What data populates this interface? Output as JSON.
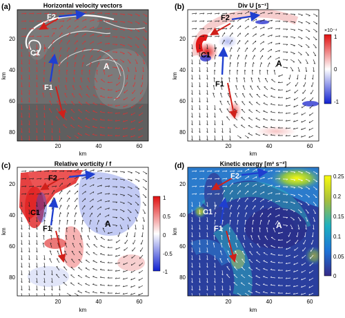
{
  "figure": {
    "panels": [
      {
        "letter": "(a)",
        "title": "Horizontal velocity vectors",
        "colorbar": null
      },
      {
        "letter": "(b)",
        "title": "Div U [s⁻¹]",
        "colorbar": {
          "exponent": "×10⁻⁴",
          "ticks": [
            "1",
            "0",
            "-1"
          ]
        }
      },
      {
        "letter": "(c)",
        "title": "Relative vorticity / f",
        "colorbar": {
          "exponent": "",
          "ticks": [
            "1",
            "0.5",
            "0",
            "-0.5",
            "-1"
          ]
        }
      },
      {
        "letter": "(d)",
        "title": "Kinetic energy [m² s⁻²]",
        "colorbar": {
          "exponent": "",
          "ticks": [
            "0.25",
            "0.2",
            "0.15",
            "0.1",
            "0.05",
            "0"
          ]
        }
      }
    ],
    "labels": {
      "c1": "C1",
      "f1": "F1",
      "f2": "F2",
      "a": "A"
    },
    "axes": {
      "xlabel": "km",
      "ylabel": "km",
      "xticks": [
        "20",
        "40",
        "60"
      ],
      "yticks": [
        "20",
        "40",
        "60",
        "80"
      ]
    },
    "colors": {
      "blue_arrow": "#1f3fd0",
      "red_arrow": "#d0201a",
      "vector_a": "#e03030",
      "vector": "#222222"
    }
  }
}
